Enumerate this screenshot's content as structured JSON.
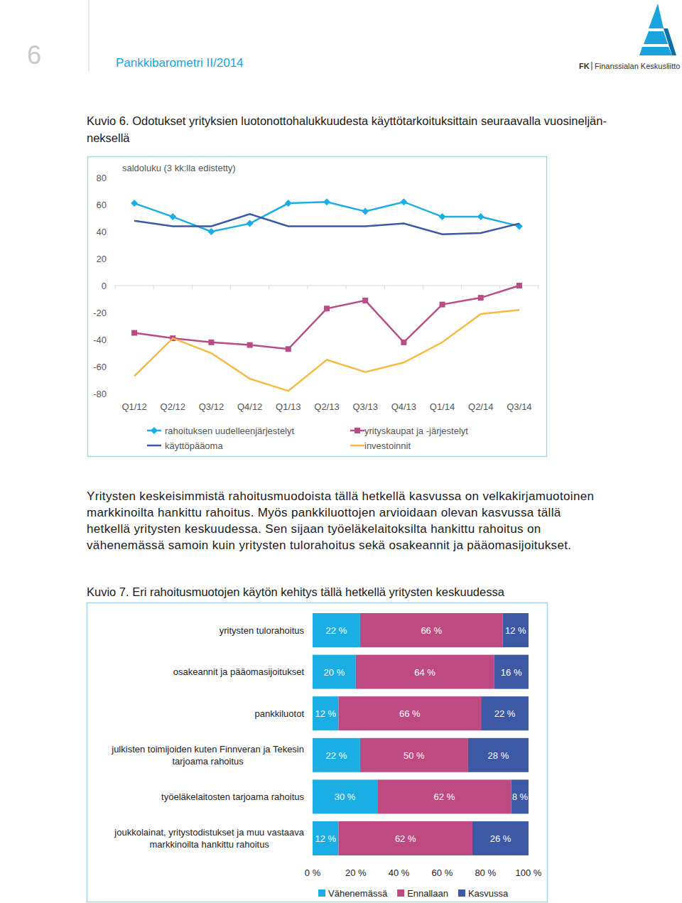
{
  "header": {
    "page_number": "6",
    "title": "Pankkibarometri II/2014",
    "logo_mark": "FK",
    "logo_text": "Finanssialan Keskusliitto"
  },
  "captions": [
    [
      "Kuvio 6. Odotukset yrityksien luotonottohalukkuudesta käyttötarkoituksittain seuraavalla vuosineljän-",
      "neksellä"
    ],
    [
      "Kuvio 7. Eri rahoitusmuotojen käytön kehitys tällä hetkellä yritysten keskuudessa"
    ]
  ],
  "body": {
    "lines": [
      "Yritysten keskeisimmistä rahoitusmuodoista tällä hetkellä kasvussa on velkakirjamuotoinen",
      "markkinoilta hankittu rahoitus. Myös pankkiluottojen arvioidaan olevan kasvussa tällä",
      "hetkellä yritysten keskuudessa. Sen sijaan työeläkelaitoksilta hankittu rahoitus on",
      "vähenemässä samoin kuin yritysten tulorahoitus sekä osakeannit ja pääomasijoitukset."
    ]
  },
  "chart_data": [
    {
      "type": "line",
      "title": "saldoluku (3 kk:lla edistetty)",
      "categories": [
        "Q1/12",
        "Q2/12",
        "Q3/12",
        "Q4/12",
        "Q1/13",
        "Q2/13",
        "Q3/13",
        "Q4/13",
        "Q1/14",
        "Q2/14",
        "Q3/14"
      ],
      "series": [
        {
          "name": "rahoituksen uudelleenjärjestelyt",
          "color": "#1aaee5",
          "marker": "diamond",
          "line_style": "solid",
          "values": [
            61,
            51,
            40,
            46,
            61,
            62,
            55,
            62,
            51,
            51,
            44
          ]
        },
        {
          "name": "käyttöpääoma",
          "color": "#3d58a4",
          "marker": "none",
          "line_style": "solid",
          "values": [
            48,
            44,
            44,
            53,
            44,
            44,
            44,
            46,
            38,
            39,
            46
          ]
        },
        {
          "name": "yrityskaupat ja -järjestelyt",
          "color": "#b94c86",
          "marker": "square",
          "line_style": "solid",
          "values": [
            -35,
            -39,
            -42,
            -44,
            -47,
            -17,
            -11,
            -42,
            -14,
            -9,
            0
          ]
        },
        {
          "name": "investoinnit",
          "color": "#f5b944",
          "marker": "none",
          "line_style": "solid",
          "values": [
            -67,
            -39,
            -50,
            -69,
            -78,
            -55,
            -64,
            -57,
            -42,
            -21,
            -18
          ]
        }
      ],
      "ylim": [
        -80,
        80
      ],
      "yticks": [
        -80,
        -60,
        -40,
        -20,
        0,
        20,
        40,
        60,
        80
      ],
      "grid": false,
      "legend": "bottom"
    },
    {
      "type": "bar",
      "orientation": "horizontal",
      "stacked": true,
      "data_labels": true,
      "grid": false,
      "legend": "bottom",
      "categories": [
        "yritysten tulorahoitus",
        "osakeannit ja pääomasijoitukset",
        "pankkiluotot",
        "julkisten toimijoiden kuten Finnveran ja Tekesin tarjoama rahoitus",
        "työeläkelaitosten tarjoama rahoitus",
        "joukkolainat, yritystodistukset ja muu vastaava markkinoilta hankittu rahoitus"
      ],
      "series": [
        {
          "name": "Vähenemässä",
          "color": "#1aaee5",
          "values": [
            22,
            20,
            12,
            22,
            30,
            12
          ],
          "value_labels": [
            "22 %",
            "20 %",
            "12 %",
            "22 %",
            "30 %",
            "12 %"
          ]
        },
        {
          "name": "Ennallaan",
          "color": "#bf4a82",
          "values": [
            66,
            64,
            66,
            50,
            62,
            62
          ],
          "value_labels": [
            "66 %",
            "64 %",
            "66 %",
            "50 %",
            "62 %",
            "62 %"
          ]
        },
        {
          "name": "Kasvussa",
          "color": "#3d58a4",
          "values": [
            12,
            16,
            22,
            28,
            8,
            26
          ],
          "value_labels": [
            "12 %",
            "16 %",
            "22 %",
            "28 %",
            "8 %",
            "26 %"
          ]
        }
      ],
      "xlim": [
        0,
        100
      ],
      "xticks": [
        {
          "value": 0,
          "label": "0 %"
        },
        {
          "value": 20,
          "label": "20 %"
        },
        {
          "value": 40,
          "label": "40 %"
        },
        {
          "value": 60,
          "label": "60 %"
        },
        {
          "value": 80,
          "label": "80 %"
        },
        {
          "value": 100,
          "label": "100 %"
        }
      ]
    }
  ]
}
